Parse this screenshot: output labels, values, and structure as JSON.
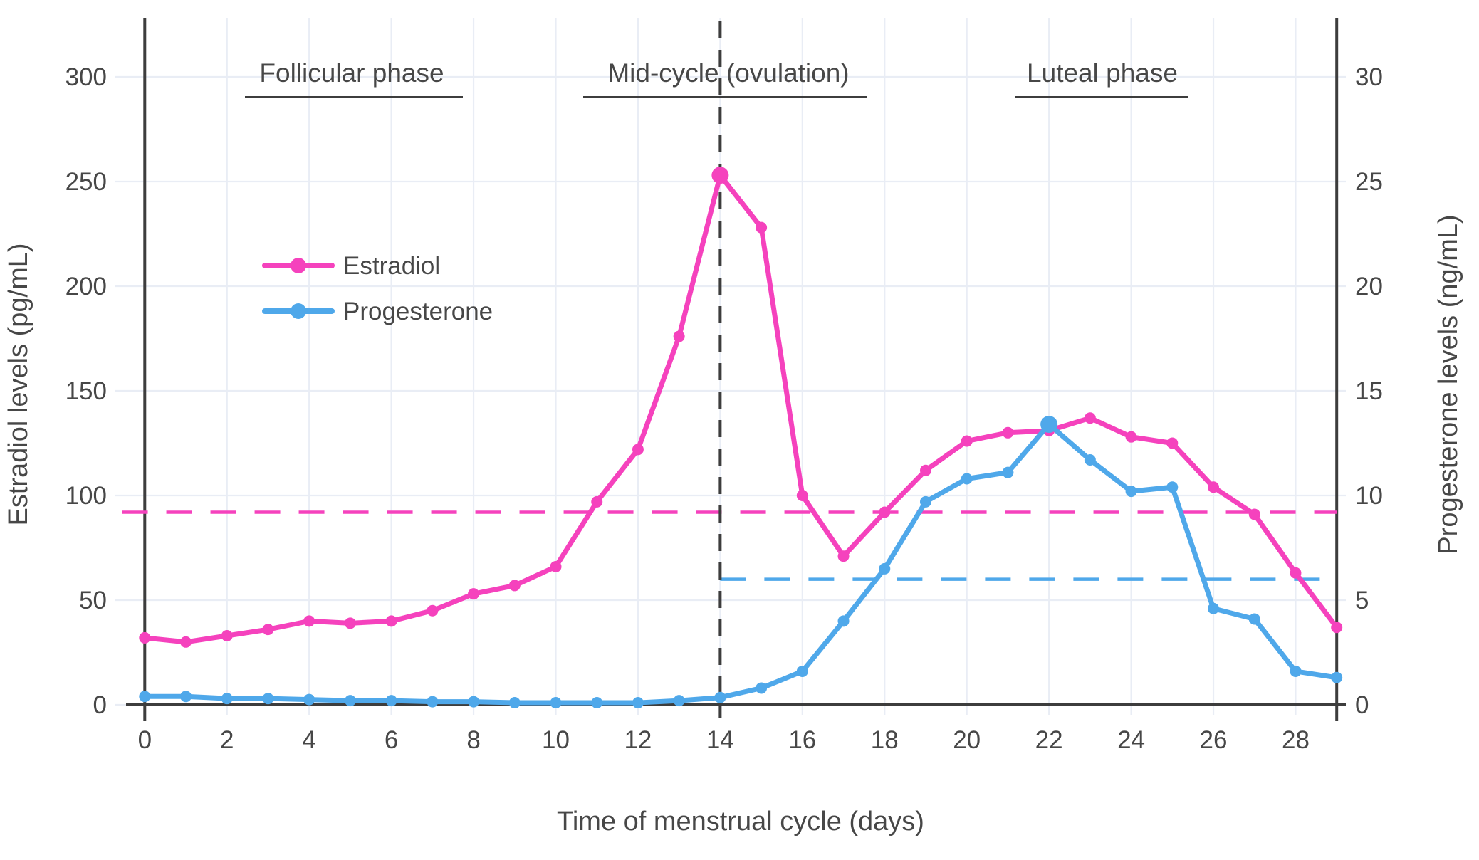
{
  "chart_data": {
    "type": "line",
    "title": "",
    "xlabel": "Time of menstrual cycle (days)",
    "ylabel_left": "Estradiol levels (pg/mL)",
    "ylabel_right": "Progesterone levels (ng/mL)",
    "x": [
      0,
      1,
      2,
      3,
      4,
      5,
      6,
      7,
      8,
      9,
      10,
      11,
      12,
      13,
      14,
      15,
      16,
      17,
      18,
      19,
      20,
      21,
      22,
      23,
      24,
      25,
      26,
      27,
      28,
      29
    ],
    "series": [
      {
        "name": "Estradiol",
        "unit": "pg/mL",
        "axis": "left",
        "color": "#f542bd",
        "emphasis_day": 14,
        "values": [
          32,
          30,
          33,
          36,
          40,
          39,
          40,
          45,
          53,
          57,
          66,
          97,
          122,
          176,
          253,
          228,
          100,
          71,
          92,
          112,
          126,
          130,
          131,
          137,
          128,
          125,
          104,
          91,
          63,
          37
        ]
      },
      {
        "name": "Progesterone",
        "unit": "ng/mL",
        "axis": "right",
        "color": "#4fa8ea",
        "emphasis_day": 22,
        "values": [
          0.4,
          0.4,
          0.3,
          0.3,
          0.25,
          0.2,
          0.2,
          0.15,
          0.15,
          0.1,
          0.1,
          0.1,
          0.1,
          0.2,
          0.35,
          0.8,
          1.6,
          4.0,
          6.5,
          9.7,
          10.8,
          11.1,
          13.4,
          11.7,
          10.2,
          10.4,
          4.6,
          4.1,
          1.6,
          1.3
        ]
      }
    ],
    "x_ticks": [
      0,
      2,
      4,
      6,
      8,
      10,
      12,
      14,
      16,
      18,
      20,
      22,
      24,
      26,
      28
    ],
    "y_ticks_left": [
      0,
      50,
      100,
      150,
      200,
      250,
      300
    ],
    "y_ticks_right": [
      0,
      5,
      10,
      15,
      20,
      25,
      30
    ],
    "xlim": [
      -0.45,
      29.2
    ],
    "ylim_left": [
      -15,
      328
    ],
    "ylim_right": [
      -1.5,
      32.8
    ],
    "grid": true,
    "legend_position": "upper-left-inside",
    "reference_lines": [
      {
        "name": "estradiol-average-line",
        "orientation": "horizontal",
        "axis": "left",
        "value": 92,
        "style": "dashed",
        "color": "#f542bd",
        "day_start": -0.55,
        "day_end": 29
      },
      {
        "name": "progesterone-luteal-average-line",
        "orientation": "horizontal",
        "axis": "right",
        "value": 6,
        "style": "dashed",
        "color": "#4fa8ea",
        "day_start": 14,
        "day_end": 29
      },
      {
        "name": "ovulation-day-line",
        "orientation": "vertical",
        "value": 14,
        "style": "dashed",
        "color": "#3d3d3d"
      }
    ],
    "annotations": [
      {
        "label": "Follicular phase",
        "day": 5.04,
        "underline_days": [
          2.44,
          7.74
        ]
      },
      {
        "label": "Mid-cycle (ovulation)",
        "day": 14.2,
        "underline_days": [
          10.67,
          17.57
        ]
      },
      {
        "label": "Luteal phase",
        "day": 23.3,
        "underline_days": [
          21.19,
          25.4
        ]
      }
    ],
    "colors": {
      "estradiol": "#f542bd",
      "progesterone": "#4fa8ea",
      "grid": "#e9edf5",
      "axis": "#3d3d3d",
      "text": "#474747"
    }
  }
}
